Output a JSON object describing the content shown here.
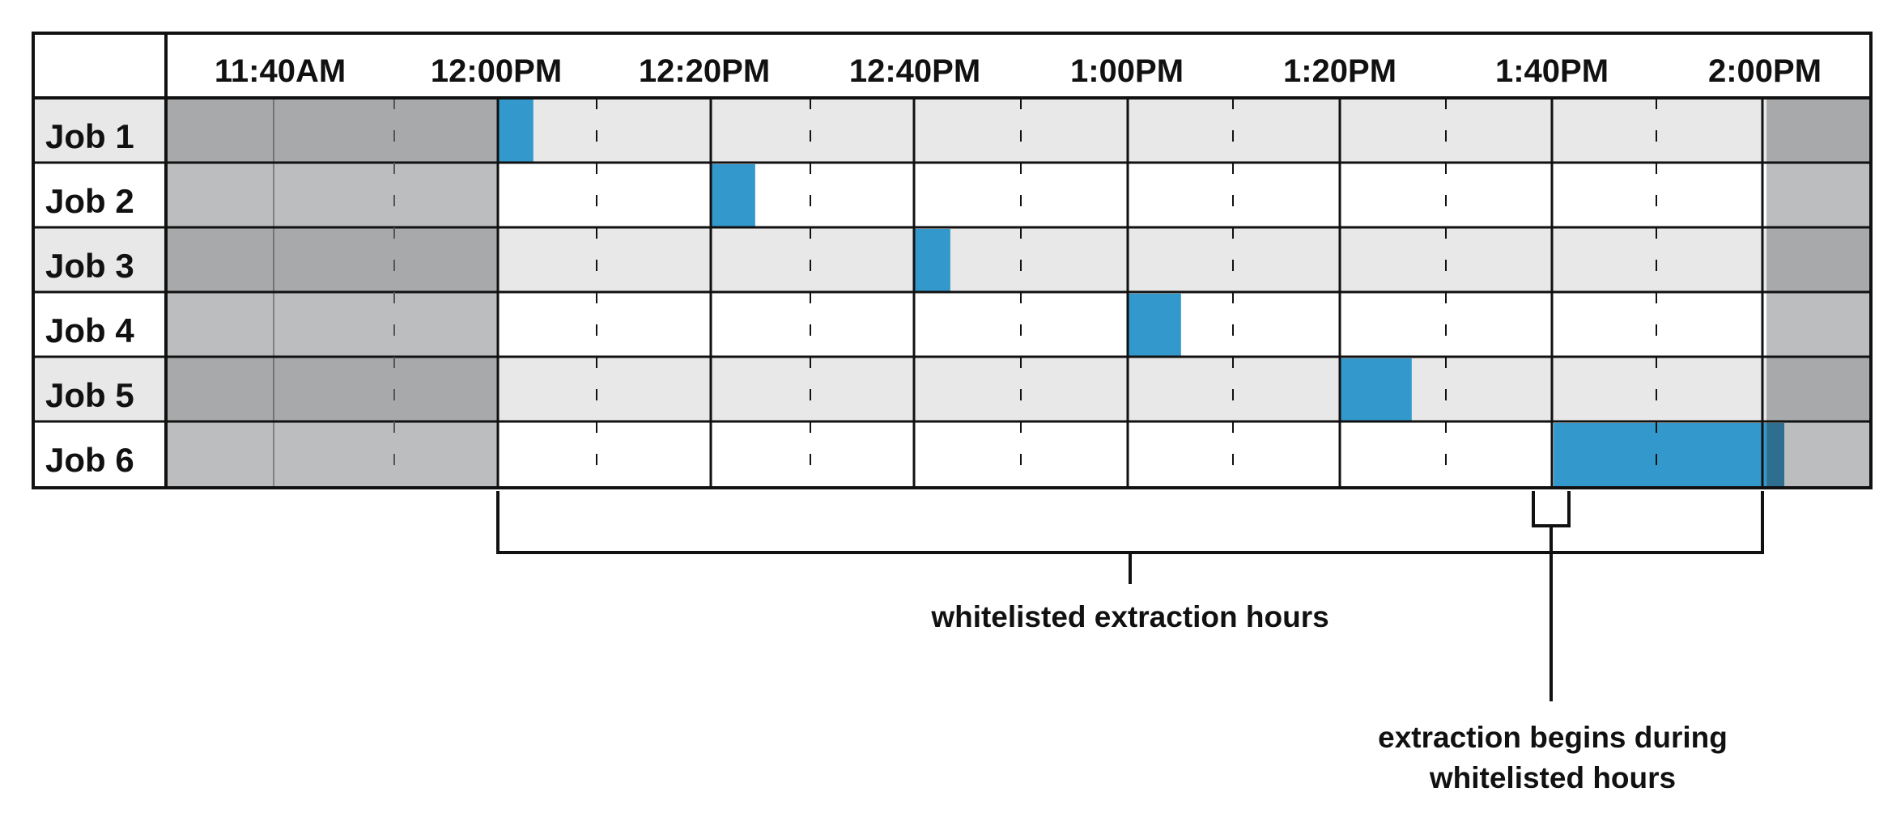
{
  "timeline": {
    "time_labels": [
      "11:40AM",
      "12:00PM",
      "12:20PM",
      "12:40PM",
      "1:00PM",
      "1:20PM",
      "1:40PM",
      "2:00PM"
    ],
    "rows": [
      {
        "label": "Job 1",
        "start_min": 0,
        "duration_min": 3.33
      },
      {
        "label": "Job 2",
        "start_min": 20,
        "duration_min": 4.17
      },
      {
        "label": "Job 3",
        "start_min": 39.17,
        "duration_min": 3.33
      },
      {
        "label": "Job 4",
        "start_min": 59.17,
        "duration_min": 5
      },
      {
        "label": "Job 5",
        "start_min": 79.17,
        "duration_min": 6.67
      },
      {
        "label": "Job 6",
        "start_min": 99.17,
        "duration_min": 21.67
      }
    ],
    "whitelist_window_min": [
      0,
      119.17
    ]
  },
  "annotations": {
    "whitelisted_label": "whitelisted extraction hours",
    "begins_label_line1": "extraction begins during",
    "begins_label_line2": "whitelisted hours"
  },
  "colors": {
    "job_bar": "#3399cc",
    "job_bar_overflow": "#2e6f90",
    "dark_gray": "#a8a9ab",
    "mid_gray": "#bcbdbf",
    "light_gray": "#e8e8e8",
    "white": "#ffffff",
    "line": "#111111"
  }
}
